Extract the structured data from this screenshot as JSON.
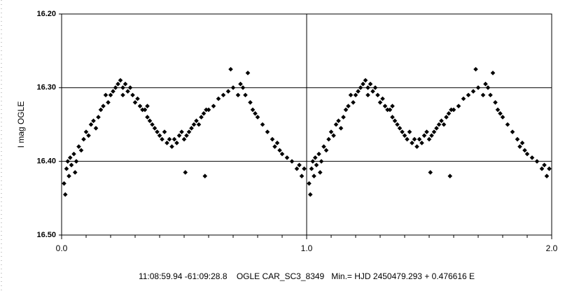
{
  "chart_data": {
    "type": "scatter",
    "ylabel": "I mag OGLE",
    "footer": "11:08:59.94 -61:09:28.8    OGLE CAR_SC3_8349   Min.= HJD 2450479.293 + 0.476616 E",
    "xlim": [
      0,
      2
    ],
    "ylim": [
      16.2,
      16.5
    ],
    "y_inverted": true,
    "xticks": [
      {
        "value": 0,
        "label": "0.0"
      },
      {
        "value": 1,
        "label": "1.0"
      },
      {
        "value": 2,
        "label": "2.0"
      }
    ],
    "xminorticks": [
      0.1,
      0.2,
      0.3,
      0.4,
      0.5,
      0.6,
      0.7,
      0.8,
      0.9,
      1.1,
      1.2,
      1.3,
      1.4,
      1.5,
      1.6,
      1.7,
      1.8,
      1.9
    ],
    "yticks": [
      {
        "value": 16.2,
        "label": "16.20"
      },
      {
        "value": 16.3,
        "label": "16.30"
      },
      {
        "value": 16.4,
        "label": "16.40"
      },
      {
        "value": 16.5,
        "label": "16.50"
      }
    ],
    "grid_y": [
      16.3,
      16.4
    ],
    "grid_x": [
      1
    ],
    "color": "#000000",
    "x": [
      0.01,
      0.015,
      0.02,
      0.025,
      0.03,
      0.035,
      0.04,
      0.05,
      0.055,
      0.06,
      0.07,
      0.08,
      0.09,
      0.1,
      0.11,
      0.12,
      0.13,
      0.14,
      0.15,
      0.16,
      0.17,
      0.18,
      0.19,
      0.2,
      0.21,
      0.22,
      0.23,
      0.24,
      0.25,
      0.26,
      0.27,
      0.28,
      0.29,
      0.3,
      0.31,
      0.32,
      0.33,
      0.34,
      0.35,
      0.36,
      0.37,
      0.38,
      0.39,
      0.4,
      0.41,
      0.42,
      0.43,
      0.44,
      0.45,
      0.46,
      0.47,
      0.48,
      0.49,
      0.5,
      0.51,
      0.52,
      0.53,
      0.54,
      0.55,
      0.56,
      0.57,
      0.58,
      0.59,
      0.6,
      0.62,
      0.64,
      0.66,
      0.68,
      0.69,
      0.7,
      0.72,
      0.73,
      0.74,
      0.75,
      0.76,
      0.77,
      0.78,
      0.79,
      0.8,
      0.82,
      0.84,
      0.86,
      0.87,
      0.88,
      0.89,
      0.9,
      0.92,
      0.94,
      0.96,
      0.97,
      0.98,
      0.99,
      0.505,
      0.585,
      0.35,
      0.25,
      1.01,
      1.015,
      1.02,
      1.025,
      1.03,
      1.035,
      1.04,
      1.05,
      1.055,
      1.06,
      1.07,
      1.08,
      1.09,
      1.1,
      1.11,
      1.12,
      1.13,
      1.14,
      1.15,
      1.16,
      1.17,
      1.18,
      1.19,
      1.2,
      1.21,
      1.22,
      1.23,
      1.24,
      1.25,
      1.26,
      1.27,
      1.28,
      1.29,
      1.3,
      1.31,
      1.32,
      1.33,
      1.34,
      1.35,
      1.36,
      1.37,
      1.38,
      1.39,
      1.4,
      1.41,
      1.42,
      1.43,
      1.44,
      1.45,
      1.46,
      1.47,
      1.48,
      1.49,
      1.5,
      1.51,
      1.52,
      1.53,
      1.54,
      1.55,
      1.56,
      1.57,
      1.58,
      1.59,
      1.6,
      1.62,
      1.64,
      1.66,
      1.68,
      1.69,
      1.7,
      1.72,
      1.73,
      1.74,
      1.75,
      1.76,
      1.77,
      1.78,
      1.79,
      1.8,
      1.82,
      1.84,
      1.86,
      1.87,
      1.88,
      1.89,
      1.9,
      1.92,
      1.94,
      1.96,
      1.97,
      1.98,
      1.99,
      1.505,
      1.585,
      1.35,
      1.25
    ],
    "values": [
      16.43,
      16.445,
      16.41,
      16.4,
      16.42,
      16.395,
      16.405,
      16.39,
      16.415,
      16.4,
      16.38,
      16.385,
      16.37,
      16.36,
      16.365,
      16.35,
      16.345,
      16.355,
      16.34,
      16.33,
      16.325,
      16.31,
      16.32,
      16.31,
      16.305,
      16.3,
      16.295,
      16.29,
      16.3,
      16.295,
      16.305,
      16.3,
      16.31,
      16.32,
      16.315,
      16.325,
      16.33,
      16.33,
      16.34,
      16.345,
      16.35,
      16.355,
      16.36,
      16.365,
      16.37,
      16.36,
      16.375,
      16.37,
      16.38,
      16.37,
      16.375,
      16.365,
      16.36,
      16.37,
      16.365,
      16.36,
      16.355,
      16.35,
      16.345,
      16.35,
      16.34,
      16.335,
      16.33,
      16.33,
      16.325,
      16.315,
      16.31,
      16.305,
      16.275,
      16.3,
      16.31,
      16.295,
      16.3,
      16.31,
      16.28,
      16.32,
      16.33,
      16.335,
      16.34,
      16.35,
      16.36,
      16.37,
      16.38,
      16.375,
      16.385,
      16.39,
      16.395,
      16.4,
      16.41,
      16.405,
      16.42,
      16.41,
      16.415,
      16.42,
      16.325,
      16.31,
      16.43,
      16.445,
      16.41,
      16.4,
      16.42,
      16.395,
      16.405,
      16.39,
      16.415,
      16.4,
      16.38,
      16.385,
      16.37,
      16.36,
      16.365,
      16.35,
      16.345,
      16.355,
      16.34,
      16.33,
      16.325,
      16.31,
      16.32,
      16.31,
      16.305,
      16.3,
      16.295,
      16.29,
      16.3,
      16.295,
      16.305,
      16.3,
      16.31,
      16.32,
      16.315,
      16.325,
      16.33,
      16.33,
      16.34,
      16.345,
      16.35,
      16.355,
      16.36,
      16.365,
      16.37,
      16.36,
      16.375,
      16.37,
      16.38,
      16.37,
      16.375,
      16.365,
      16.36,
      16.37,
      16.365,
      16.36,
      16.355,
      16.35,
      16.345,
      16.35,
      16.34,
      16.335,
      16.33,
      16.33,
      16.325,
      16.315,
      16.31,
      16.305,
      16.275,
      16.3,
      16.31,
      16.295,
      16.3,
      16.31,
      16.28,
      16.32,
      16.33,
      16.335,
      16.34,
      16.35,
      16.36,
      16.37,
      16.38,
      16.375,
      16.385,
      16.39,
      16.395,
      16.4,
      16.41,
      16.405,
      16.42,
      16.41,
      16.415,
      16.42,
      16.325,
      16.31
    ]
  }
}
